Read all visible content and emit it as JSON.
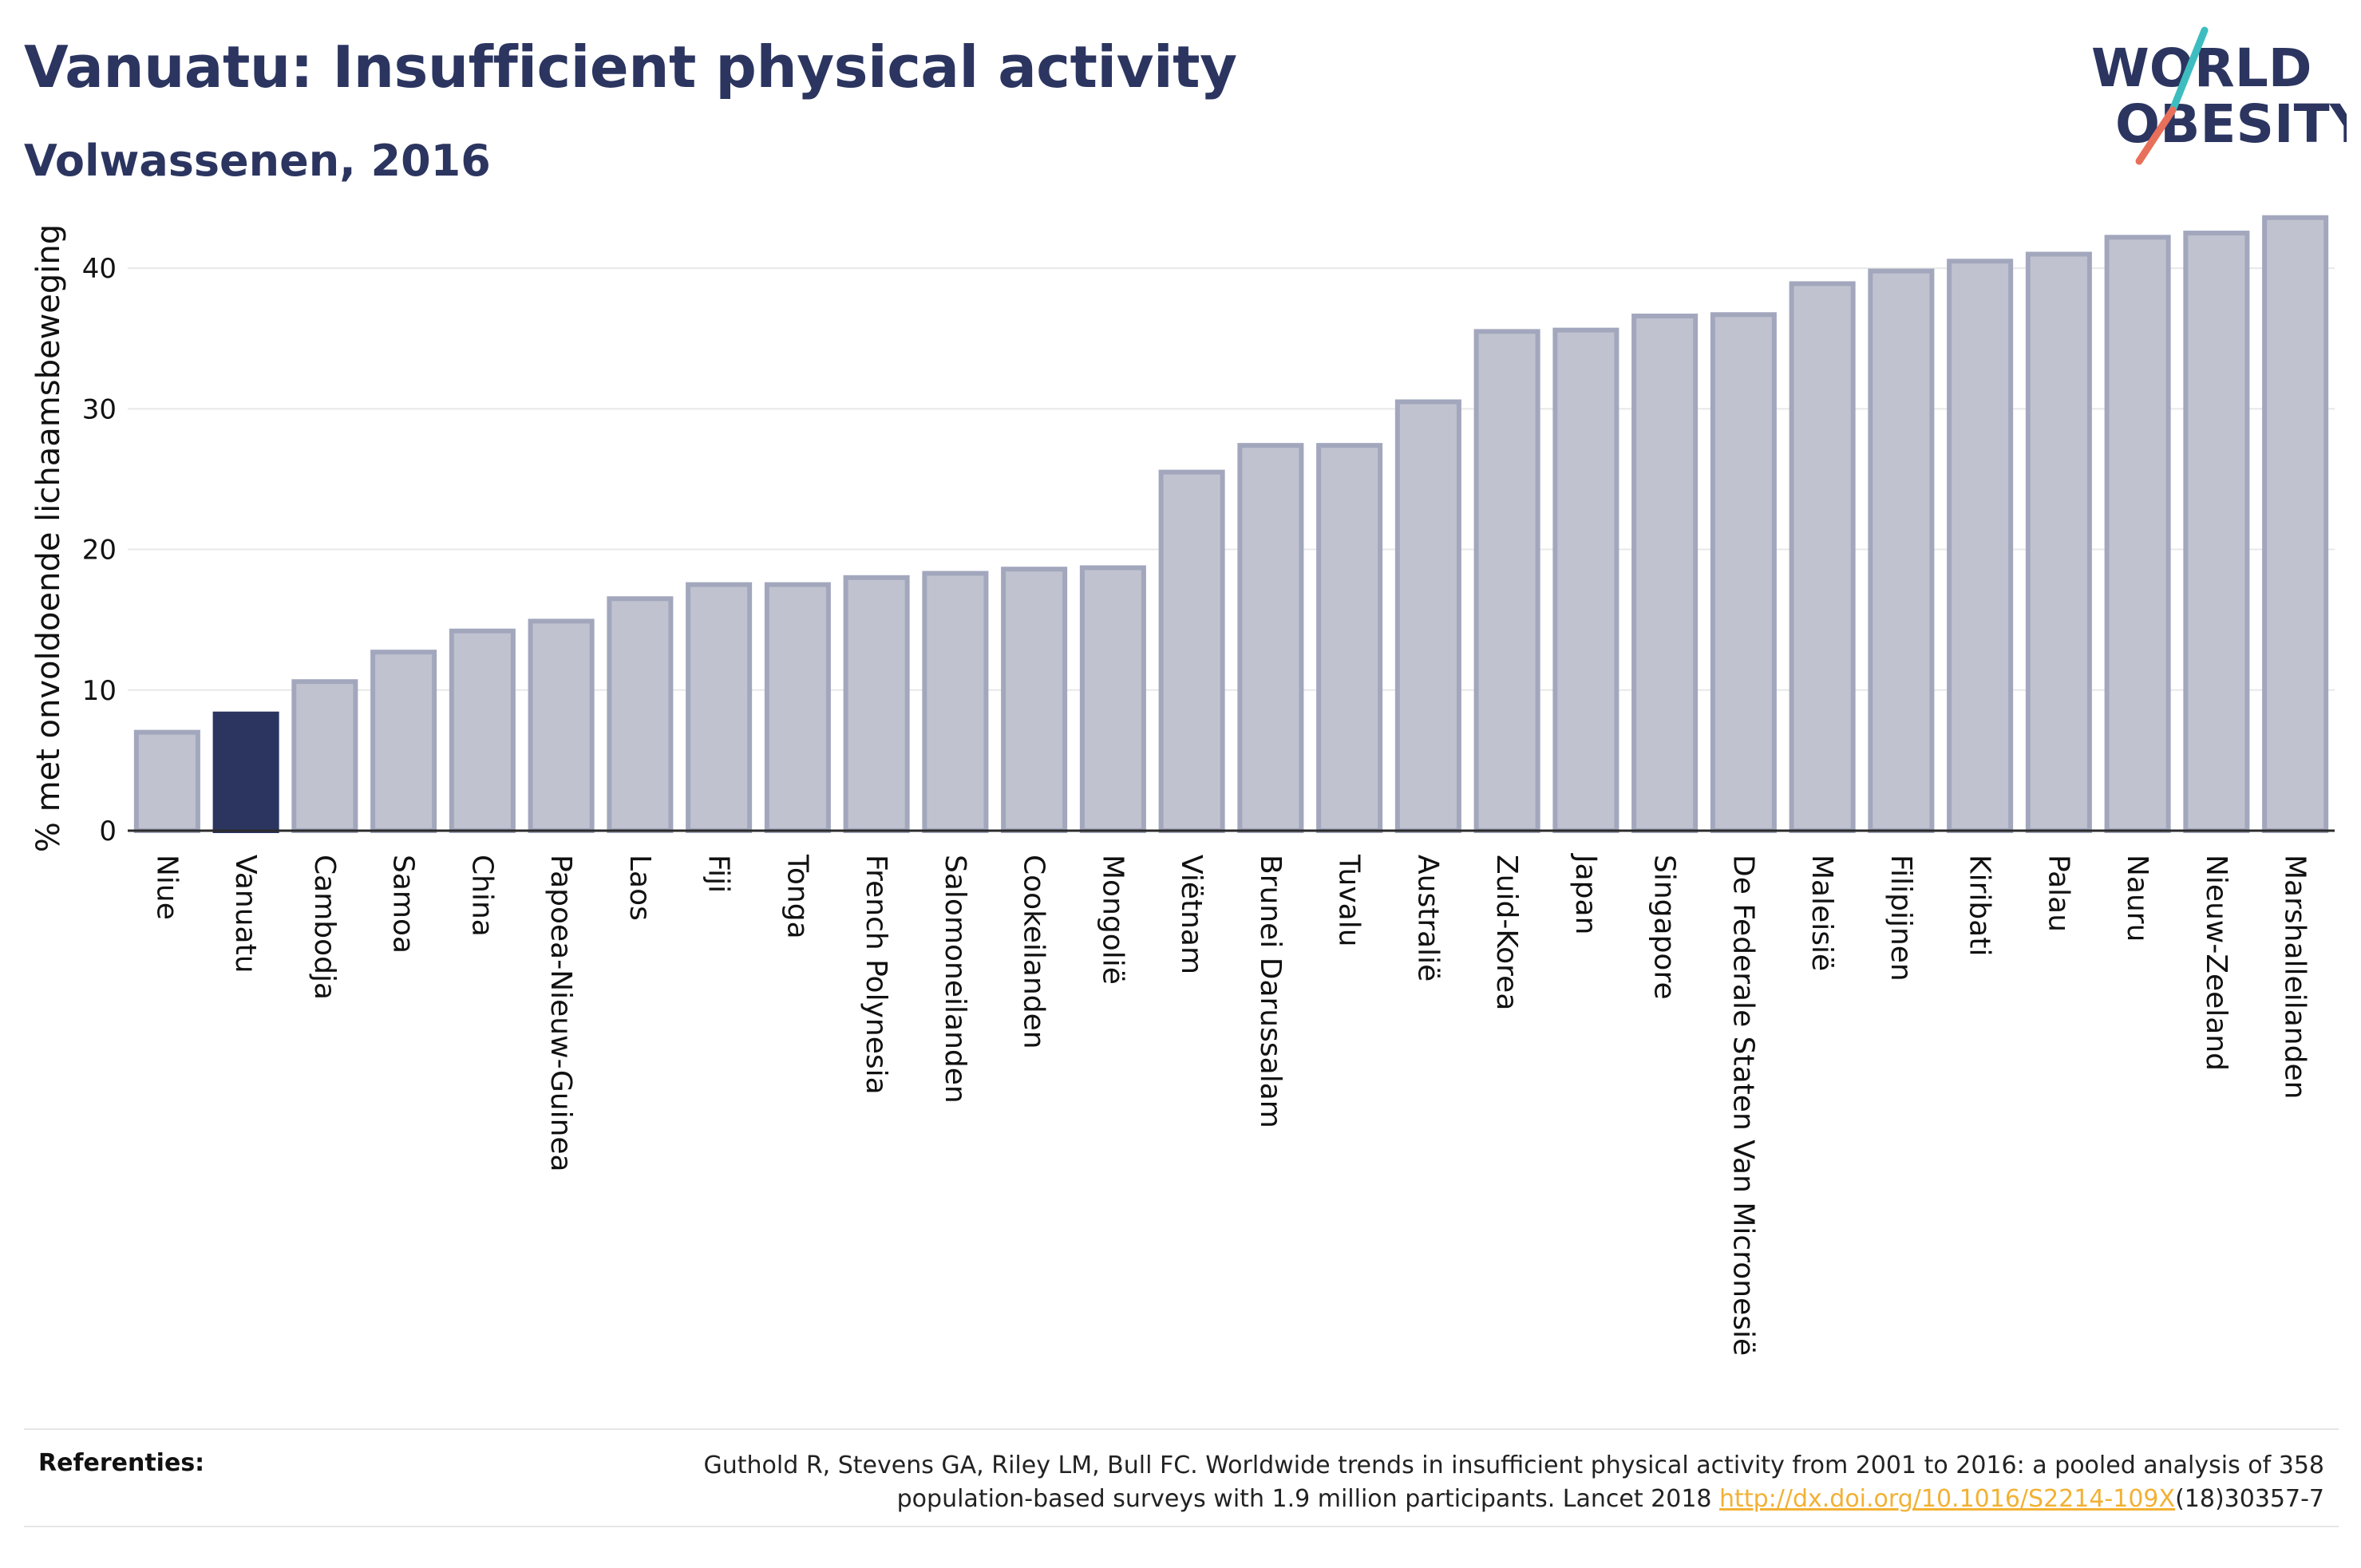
{
  "header": {
    "title": "Vanuatu: Insufficient physical activity",
    "subtitle": "Volwassenen, 2016"
  },
  "logo": {
    "line1": "WORLD",
    "line2": "OBESITY",
    "slash_colors": [
      "#3dbdbf",
      "#e8705a"
    ]
  },
  "chart_data": {
    "type": "bar",
    "title": "Vanuatu: Insufficient physical activity",
    "subtitle": "Volwassenen, 2016",
    "xlabel": "",
    "ylabel": "% met onvoldoende lichaamsbeweging",
    "ylim": [
      0,
      45
    ],
    "yticks": [
      0,
      10,
      20,
      30,
      40
    ],
    "grid": true,
    "highlight": "Vanuatu",
    "colors": {
      "bar": "#c0c3cf",
      "bar_border": "#a2a7bd",
      "highlight": "#2b3560"
    },
    "categories": [
      "Niue",
      "Vanuatu",
      "Cambodja",
      "Samoa",
      "China",
      "Papoea-Nieuw-Guinea",
      "Laos",
      "Fiji",
      "Tonga",
      "French Polynesia",
      "Salomoneilanden",
      "Cookeilanden",
      "Mongolië",
      "Viëtnam",
      "Brunei Darussalam",
      "Tuvalu",
      "Australië",
      "Zuid-Korea",
      "Japan",
      "Singapore",
      "De Federale Staten Van Micronesië",
      "Maleisië",
      "Filipijnen",
      "Kiribati",
      "Palau",
      "Nauru",
      "Nieuw-Zeeland",
      "Marshalleilanden"
    ],
    "values": [
      7.0,
      8.3,
      10.6,
      12.7,
      14.2,
      14.9,
      16.5,
      17.5,
      17.5,
      18.0,
      18.3,
      18.6,
      18.7,
      25.5,
      27.4,
      27.4,
      30.5,
      35.5,
      35.6,
      36.6,
      36.7,
      38.9,
      39.8,
      40.5,
      41.0,
      42.2,
      42.5,
      43.6
    ]
  },
  "references": {
    "label": "Referenties:",
    "text_before": "Guthold R, Stevens GA, Riley LM, Bull FC. Worldwide trends in insufficient physical activity from 2001 to 2016: a pooled analysis of 358 population-based surveys with 1.9 million participants. Lancet 2018 ",
    "link": "http://dx.doi.org/10.1016/S2214-109X",
    "text_after": "(18)30357-7"
  }
}
